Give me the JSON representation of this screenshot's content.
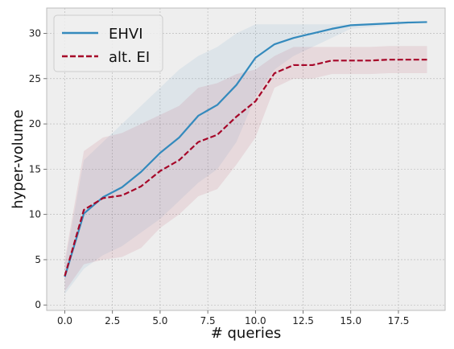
{
  "chart_data": {
    "type": "line",
    "title": "",
    "xlabel": "# queries",
    "ylabel": "hyper-volume",
    "xlim": [
      -0.95,
      19.95
    ],
    "ylim": [
      -0.6,
      32.8
    ],
    "xticks": [
      0.0,
      2.5,
      5.0,
      7.5,
      10.0,
      12.5,
      15.0,
      17.5
    ],
    "xtick_labels": [
      "0.0",
      "2.5",
      "5.0",
      "7.5",
      "10.0",
      "12.5",
      "15.0",
      "17.5"
    ],
    "yticks": [
      0,
      5,
      10,
      15,
      20,
      25,
      30
    ],
    "ytick_labels": [
      "0",
      "5",
      "10",
      "15",
      "20",
      "25",
      "30"
    ],
    "grid": true,
    "legend_position": "top-left",
    "x": [
      0,
      1,
      2,
      3,
      4,
      5,
      6,
      7,
      8,
      9,
      10,
      11,
      12,
      13,
      14,
      15,
      16,
      17,
      18,
      19
    ],
    "series": [
      {
        "name": "EHVI",
        "color": "#348abd",
        "line_style": "solid",
        "values": [
          3.1,
          10.1,
          11.9,
          13.0,
          14.7,
          16.8,
          18.5,
          20.9,
          22.1,
          24.3,
          27.3,
          28.8,
          29.5,
          30.0,
          30.5,
          30.9,
          31.0,
          31.1,
          31.2,
          31.25
        ],
        "band_upper": [
          4.5,
          16.0,
          18.0,
          20.0,
          22.0,
          24.0,
          26.0,
          27.5,
          28.5,
          30.0,
          31.0,
          31.0,
          31.0,
          31.0,
          31.0,
          31.0,
          31.0,
          31.0,
          31.0,
          31.1
        ],
        "band_lower": [
          1.2,
          4.0,
          5.5,
          6.5,
          8.0,
          9.5,
          11.5,
          13.5,
          15.0,
          18.0,
          23.0,
          26.0,
          27.5,
          28.5,
          29.5,
          30.5,
          30.7,
          30.9,
          31.0,
          31.1
        ]
      },
      {
        "name": "alt. EI",
        "color": "#a60628",
        "line_style": "dashed",
        "values": [
          3.2,
          10.5,
          11.8,
          12.1,
          13.1,
          14.8,
          16.0,
          18.0,
          18.8,
          20.8,
          22.5,
          25.6,
          26.5,
          26.5,
          27.0,
          27.0,
          27.0,
          27.1,
          27.1,
          27.1
        ],
        "band_upper": [
          5.0,
          17.0,
          18.5,
          19.0,
          20.0,
          21.0,
          22.0,
          24.0,
          24.5,
          25.5,
          26.0,
          27.5,
          28.5,
          28.5,
          28.5,
          28.5,
          28.5,
          28.6,
          28.6,
          28.6
        ],
        "band_lower": [
          1.5,
          4.5,
          5.0,
          5.3,
          6.3,
          8.5,
          10.0,
          12.0,
          12.8,
          15.5,
          18.5,
          24.0,
          25.0,
          25.0,
          25.5,
          25.5,
          25.5,
          25.6,
          25.6,
          25.6
        ]
      }
    ]
  },
  "colors": {
    "plot_background": "#eeeeee",
    "grid": "#b2b2b2",
    "axis_frame": "#bcbcbc",
    "legend_background": "#eeeeee"
  }
}
